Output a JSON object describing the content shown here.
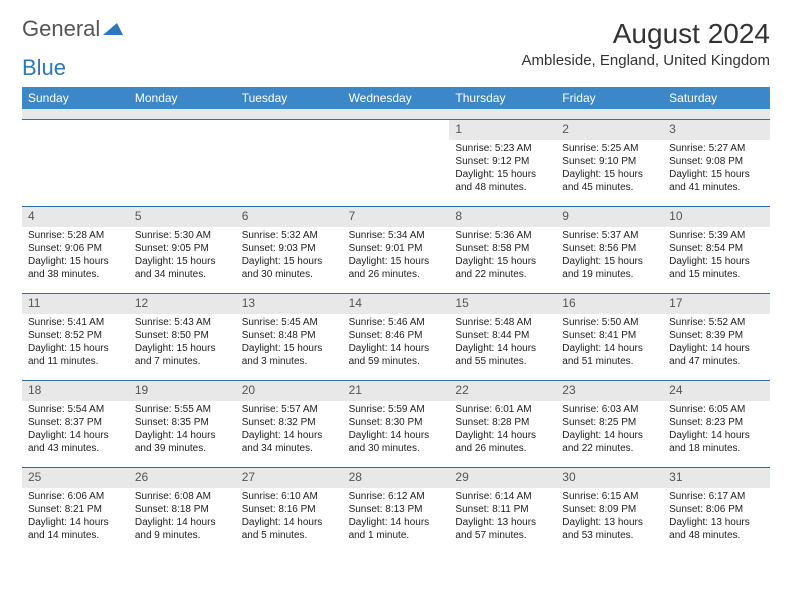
{
  "brand": {
    "word1": "General",
    "word2": "Blue"
  },
  "title": "August 2024",
  "location": "Ambleside, England, United Kingdom",
  "colors": {
    "header_bg": "#3b87c8",
    "header_text": "#ffffff",
    "daynum_bg": "#e8e8e8",
    "week_border": "#2e6fa8",
    "brand_blue": "#2e77b8",
    "text": "#222222"
  },
  "day_names": [
    "Sunday",
    "Monday",
    "Tuesday",
    "Wednesday",
    "Thursday",
    "Friday",
    "Saturday"
  ],
  "weeks": [
    [
      null,
      null,
      null,
      null,
      {
        "n": "1",
        "sr": "Sunrise: 5:23 AM",
        "ss": "Sunset: 9:12 PM",
        "dl": "Daylight: 15 hours and 48 minutes."
      },
      {
        "n": "2",
        "sr": "Sunrise: 5:25 AM",
        "ss": "Sunset: 9:10 PM",
        "dl": "Daylight: 15 hours and 45 minutes."
      },
      {
        "n": "3",
        "sr": "Sunrise: 5:27 AM",
        "ss": "Sunset: 9:08 PM",
        "dl": "Daylight: 15 hours and 41 minutes."
      }
    ],
    [
      {
        "n": "4",
        "sr": "Sunrise: 5:28 AM",
        "ss": "Sunset: 9:06 PM",
        "dl": "Daylight: 15 hours and 38 minutes."
      },
      {
        "n": "5",
        "sr": "Sunrise: 5:30 AM",
        "ss": "Sunset: 9:05 PM",
        "dl": "Daylight: 15 hours and 34 minutes."
      },
      {
        "n": "6",
        "sr": "Sunrise: 5:32 AM",
        "ss": "Sunset: 9:03 PM",
        "dl": "Daylight: 15 hours and 30 minutes."
      },
      {
        "n": "7",
        "sr": "Sunrise: 5:34 AM",
        "ss": "Sunset: 9:01 PM",
        "dl": "Daylight: 15 hours and 26 minutes."
      },
      {
        "n": "8",
        "sr": "Sunrise: 5:36 AM",
        "ss": "Sunset: 8:58 PM",
        "dl": "Daylight: 15 hours and 22 minutes."
      },
      {
        "n": "9",
        "sr": "Sunrise: 5:37 AM",
        "ss": "Sunset: 8:56 PM",
        "dl": "Daylight: 15 hours and 19 minutes."
      },
      {
        "n": "10",
        "sr": "Sunrise: 5:39 AM",
        "ss": "Sunset: 8:54 PM",
        "dl": "Daylight: 15 hours and 15 minutes."
      }
    ],
    [
      {
        "n": "11",
        "sr": "Sunrise: 5:41 AM",
        "ss": "Sunset: 8:52 PM",
        "dl": "Daylight: 15 hours and 11 minutes."
      },
      {
        "n": "12",
        "sr": "Sunrise: 5:43 AM",
        "ss": "Sunset: 8:50 PM",
        "dl": "Daylight: 15 hours and 7 minutes."
      },
      {
        "n": "13",
        "sr": "Sunrise: 5:45 AM",
        "ss": "Sunset: 8:48 PM",
        "dl": "Daylight: 15 hours and 3 minutes."
      },
      {
        "n": "14",
        "sr": "Sunrise: 5:46 AM",
        "ss": "Sunset: 8:46 PM",
        "dl": "Daylight: 14 hours and 59 minutes."
      },
      {
        "n": "15",
        "sr": "Sunrise: 5:48 AM",
        "ss": "Sunset: 8:44 PM",
        "dl": "Daylight: 14 hours and 55 minutes."
      },
      {
        "n": "16",
        "sr": "Sunrise: 5:50 AM",
        "ss": "Sunset: 8:41 PM",
        "dl": "Daylight: 14 hours and 51 minutes."
      },
      {
        "n": "17",
        "sr": "Sunrise: 5:52 AM",
        "ss": "Sunset: 8:39 PM",
        "dl": "Daylight: 14 hours and 47 minutes."
      }
    ],
    [
      {
        "n": "18",
        "sr": "Sunrise: 5:54 AM",
        "ss": "Sunset: 8:37 PM",
        "dl": "Daylight: 14 hours and 43 minutes."
      },
      {
        "n": "19",
        "sr": "Sunrise: 5:55 AM",
        "ss": "Sunset: 8:35 PM",
        "dl": "Daylight: 14 hours and 39 minutes."
      },
      {
        "n": "20",
        "sr": "Sunrise: 5:57 AM",
        "ss": "Sunset: 8:32 PM",
        "dl": "Daylight: 14 hours and 34 minutes."
      },
      {
        "n": "21",
        "sr": "Sunrise: 5:59 AM",
        "ss": "Sunset: 8:30 PM",
        "dl": "Daylight: 14 hours and 30 minutes."
      },
      {
        "n": "22",
        "sr": "Sunrise: 6:01 AM",
        "ss": "Sunset: 8:28 PM",
        "dl": "Daylight: 14 hours and 26 minutes."
      },
      {
        "n": "23",
        "sr": "Sunrise: 6:03 AM",
        "ss": "Sunset: 8:25 PM",
        "dl": "Daylight: 14 hours and 22 minutes."
      },
      {
        "n": "24",
        "sr": "Sunrise: 6:05 AM",
        "ss": "Sunset: 8:23 PM",
        "dl": "Daylight: 14 hours and 18 minutes."
      }
    ],
    [
      {
        "n": "25",
        "sr": "Sunrise: 6:06 AM",
        "ss": "Sunset: 8:21 PM",
        "dl": "Daylight: 14 hours and 14 minutes."
      },
      {
        "n": "26",
        "sr": "Sunrise: 6:08 AM",
        "ss": "Sunset: 8:18 PM",
        "dl": "Daylight: 14 hours and 9 minutes."
      },
      {
        "n": "27",
        "sr": "Sunrise: 6:10 AM",
        "ss": "Sunset: 8:16 PM",
        "dl": "Daylight: 14 hours and 5 minutes."
      },
      {
        "n": "28",
        "sr": "Sunrise: 6:12 AM",
        "ss": "Sunset: 8:13 PM",
        "dl": "Daylight: 14 hours and 1 minute."
      },
      {
        "n": "29",
        "sr": "Sunrise: 6:14 AM",
        "ss": "Sunset: 8:11 PM",
        "dl": "Daylight: 13 hours and 57 minutes."
      },
      {
        "n": "30",
        "sr": "Sunrise: 6:15 AM",
        "ss": "Sunset: 8:09 PM",
        "dl": "Daylight: 13 hours and 53 minutes."
      },
      {
        "n": "31",
        "sr": "Sunrise: 6:17 AM",
        "ss": "Sunset: 8:06 PM",
        "dl": "Daylight: 13 hours and 48 minutes."
      }
    ]
  ]
}
